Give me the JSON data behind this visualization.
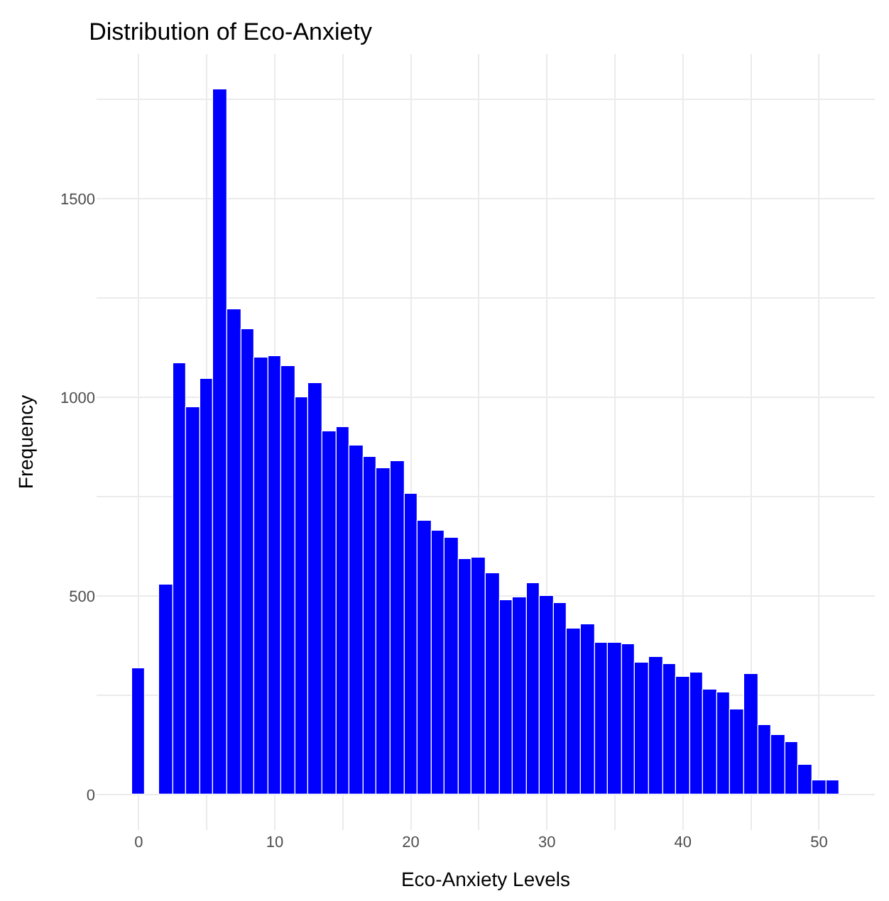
{
  "chart_data": {
    "type": "histogram",
    "title": "Distribution of Eco-Anxiety",
    "xlabel": "Eco-Anxiety Levels",
    "ylabel": "Frequency",
    "color": "#0000ff",
    "bins": [
      -0.5,
      0.5,
      1.5,
      2.5,
      3.5,
      4.5,
      5.5,
      6.5,
      7.5,
      8.5,
      9.5,
      10.5,
      11.5,
      12.5,
      13.5,
      14.5,
      15.5,
      16.5,
      17.5,
      18.5,
      19.5,
      20.5,
      21.5,
      22.5,
      23.5,
      24.5,
      25.5,
      26.5,
      27.5,
      28.5,
      29.5,
      30.5,
      31.5,
      32.5,
      33.5,
      34.5,
      35.5,
      36.5,
      37.5,
      38.5,
      39.5,
      40.5,
      41.5,
      42.5,
      43.5,
      44.5,
      45.5,
      46.5,
      47.5,
      48.5,
      49.5,
      50.5,
      51.5
    ],
    "values": [
      320,
      0,
      528,
      1088,
      977,
      1048,
      1776,
      1223,
      1171,
      1099,
      1103,
      1078,
      1000,
      1037,
      915,
      926,
      878,
      852,
      823,
      841,
      759,
      689,
      663,
      648,
      593,
      598,
      559,
      489,
      497,
      533,
      500,
      484,
      418,
      430,
      384,
      381,
      378,
      334,
      346,
      329,
      297,
      308,
      266,
      256,
      215,
      304,
      174,
      152,
      133,
      74,
      36,
      36
    ],
    "xlim": [
      -3.1,
      54.1
    ],
    "xticks": [
      0,
      10,
      20,
      30,
      40,
      50
    ],
    "ylim": [
      -89,
      1865
    ],
    "yticks": [
      0,
      500,
      1000,
      1500
    ],
    "grid": true,
    "legend": false
  }
}
